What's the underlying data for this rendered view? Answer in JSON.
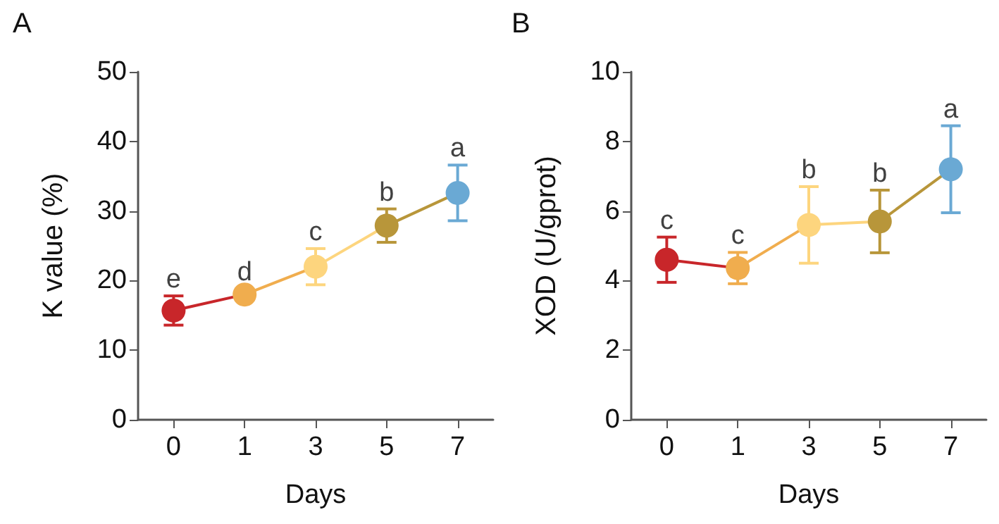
{
  "chart_data": [
    {
      "type": "line",
      "title": "A",
      "xlabel": "Days",
      "ylabel": "K value (%)",
      "categories": [
        "0",
        "1",
        "3",
        "5",
        "7"
      ],
      "values": [
        15.7,
        18.0,
        22.0,
        27.9,
        32.6
      ],
      "errors": [
        2.1,
        0.8,
        2.6,
        2.4,
        4.0
      ],
      "colors": [
        "#c8262a",
        "#f0ad4e",
        "#fdd57e",
        "#b8963a",
        "#6aa9d4"
      ],
      "marker": "circle",
      "ylim": [
        0,
        50
      ],
      "yticks": [
        0,
        10,
        20,
        30,
        40,
        50
      ],
      "grid": false,
      "annotations": [
        {
          "text": "e",
          "x": "0",
          "y": 17.8
        },
        {
          "text": "d",
          "x": "1",
          "y": 18.8
        },
        {
          "text": "c",
          "x": "3",
          "y": 24.6
        },
        {
          "text": "b",
          "x": "5",
          "y": 30.3
        },
        {
          "text": "a",
          "x": "7",
          "y": 36.6
        }
      ]
    },
    {
      "type": "line",
      "title": "B",
      "xlabel": "Days",
      "ylabel": "XOD (U/gprot)",
      "categories": [
        "0",
        "1",
        "3",
        "5",
        "7"
      ],
      "values": [
        4.6,
        4.36,
        5.6,
        5.7,
        7.2
      ],
      "errors": [
        0.65,
        0.45,
        1.1,
        0.9,
        1.25
      ],
      "colors": [
        "#c8262a",
        "#f0ad4e",
        "#fdd57e",
        "#b8963a",
        "#6aa9d4"
      ],
      "marker": "circle",
      "ylim": [
        0,
        10
      ],
      "yticks": [
        0,
        2,
        4,
        6,
        8,
        10
      ],
      "grid": false,
      "annotations": [
        {
          "text": "c",
          "x": "0",
          "y": 5.25
        },
        {
          "text": "c",
          "x": "1",
          "y": 4.81
        },
        {
          "text": "b",
          "x": "3",
          "y": 6.7
        },
        {
          "text": "b",
          "x": "5",
          "y": 6.6
        },
        {
          "text": "a",
          "x": "7",
          "y": 8.45
        }
      ]
    }
  ]
}
